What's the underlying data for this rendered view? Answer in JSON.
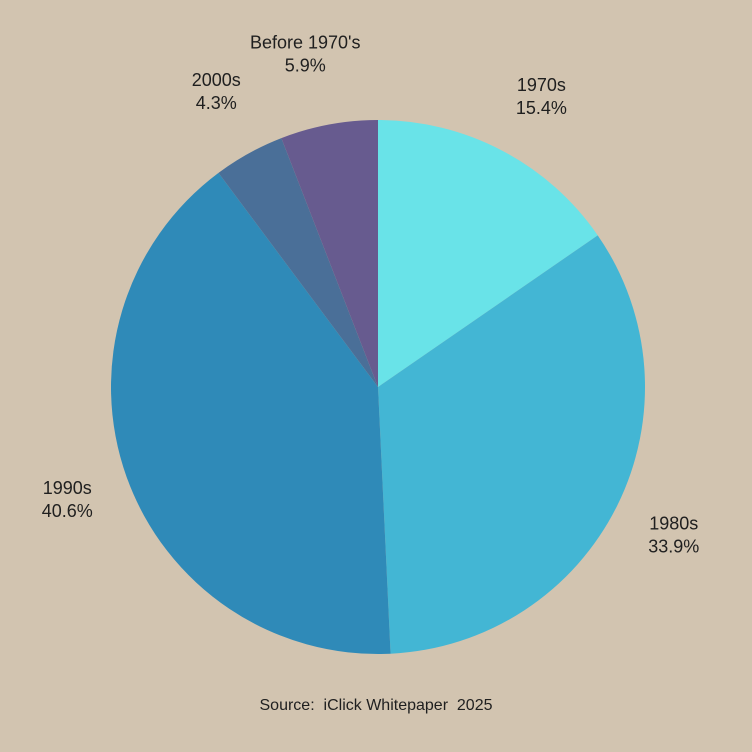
{
  "chart_data": {
    "type": "pie",
    "slices": [
      {
        "label": "1970s",
        "value": 15.4,
        "value_label": "15.4%",
        "color": "#69e3e8"
      },
      {
        "label": "1980s",
        "value": 33.9,
        "value_label": "33.9%",
        "color": "#43b6d4"
      },
      {
        "label": "1990s",
        "value": 40.6,
        "value_label": "40.6%",
        "color": "#2f8ab8"
      },
      {
        "label": "2000s",
        "value": 4.3,
        "value_label": "4.3%",
        "color": "#4a6f98"
      },
      {
        "label": "Before 1970's",
        "value": 5.9,
        "value_label": "5.9%",
        "color": "#675b8f"
      }
    ],
    "start_angle": "12 o'clock",
    "direction": "clockwise",
    "legend": "none"
  },
  "source": "Source:  iClick Whitepaper  2025",
  "colors": {
    "background": "#d2c4b0",
    "text": "#1f1f1f"
  }
}
